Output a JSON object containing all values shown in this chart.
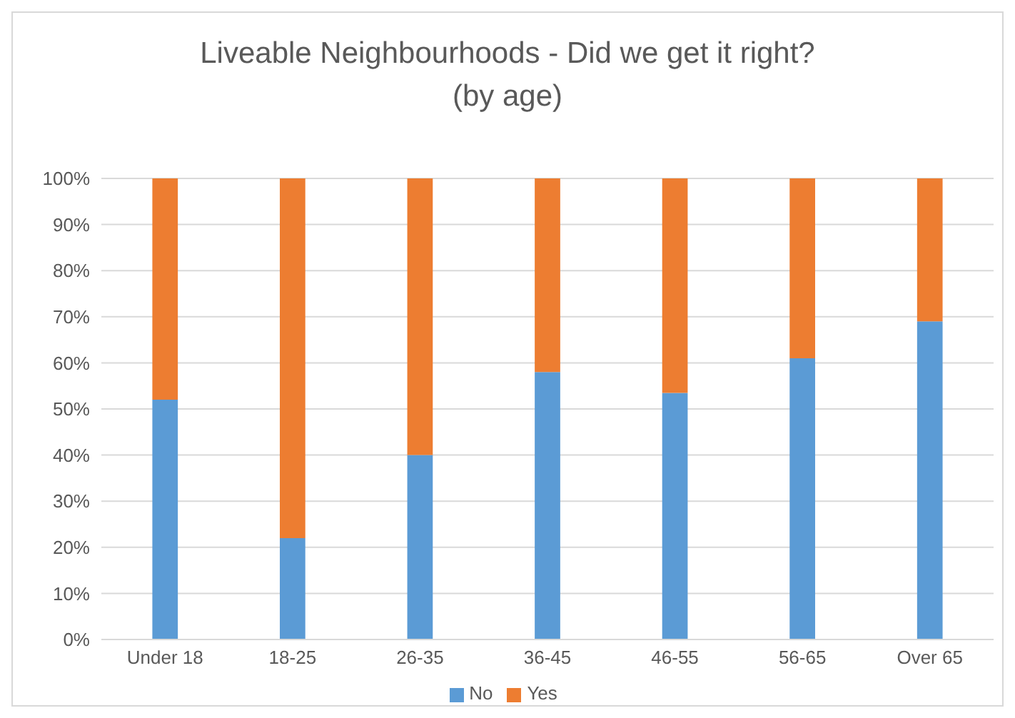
{
  "chart_data": {
    "type": "bar",
    "title": "Liveable Neighbourhoods - Did we get it right?\n(by age)",
    "categories": [
      "Under 18",
      "18-25",
      "26-35",
      "36-45",
      "46-55",
      "56-65",
      "Over 65"
    ],
    "series": [
      {
        "name": "No",
        "color": "#5b9bd5",
        "values": [
          52,
          22,
          40,
          58,
          53.5,
          61,
          69
        ]
      },
      {
        "name": "Yes",
        "color": "#ed7d31",
        "values": [
          48,
          78,
          60,
          42,
          46.5,
          39,
          31
        ]
      }
    ],
    "stacked": true,
    "ylim": [
      0,
      100
    ],
    "yticks": [
      {
        "value": 0,
        "label": "0%"
      },
      {
        "value": 10,
        "label": "10%"
      },
      {
        "value": 20,
        "label": "20%"
      },
      {
        "value": 30,
        "label": "30%"
      },
      {
        "value": 40,
        "label": "40%"
      },
      {
        "value": 50,
        "label": "50%"
      },
      {
        "value": 60,
        "label": "60%"
      },
      {
        "value": 70,
        "label": "70%"
      },
      {
        "value": 80,
        "label": "80%"
      },
      {
        "value": 90,
        "label": "90%"
      },
      {
        "value": 100,
        "label": "100%"
      }
    ],
    "grid": "y",
    "legend": "bottom"
  }
}
